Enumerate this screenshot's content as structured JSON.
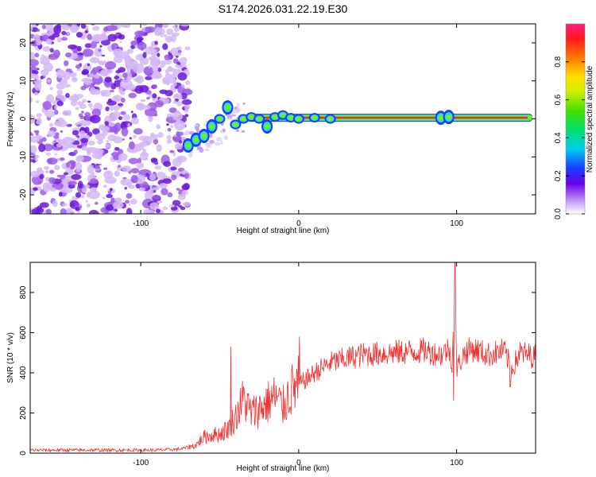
{
  "title": "S174.2026.031.22.19.E30",
  "chart_data": [
    {
      "type": "heatmap",
      "name": "spectrogram",
      "xlabel": "Height of straight line (km)",
      "ylabel": "Frequency (Hz)",
      "xlim": [
        -170,
        150
      ],
      "ylim": [
        -25,
        25
      ],
      "xticks": [
        -100,
        0,
        100
      ],
      "xtick_labels": [
        "-100",
        "0",
        "100"
      ],
      "yticks": [
        -20,
        -10,
        0,
        10,
        20
      ],
      "ytick_labels": [
        "-20",
        "-10",
        "0",
        "10",
        "20"
      ],
      "noise_region_x": [
        -170,
        -70
      ],
      "transition_region_x": [
        -72,
        -33
      ],
      "signal": {
        "frequency_hz": 0.3,
        "start_x": -33,
        "end_x": 148,
        "feature_x": [
          -70,
          -65,
          -60,
          -55,
          -50,
          -45,
          -40,
          -35,
          -30,
          -25,
          -20,
          -15,
          -10,
          -5,
          0,
          10,
          20,
          90,
          95
        ],
        "feature_freq": [
          -7,
          -5.5,
          -4.5,
          -2,
          0,
          3,
          -1.5,
          0,
          0.5,
          0,
          -2,
          0.5,
          1,
          0.3,
          0,
          0.3,
          0,
          0.3,
          0.5
        ]
      },
      "colorbar": {
        "label": "Normalized spectral amplitude",
        "range": [
          0,
          1
        ],
        "ticks": [
          0.0,
          0.2,
          0.4,
          0.6,
          0.8
        ],
        "tick_labels": [
          "0.0",
          "0.2",
          "0.4",
          "0.6",
          "0.8"
        ]
      }
    },
    {
      "type": "line",
      "name": "snr",
      "xlabel": "Height of straight line (km)",
      "ylabel": "SNR (10 * v/v)",
      "xlim": [
        -170,
        150
      ],
      "ylim": [
        0,
        950
      ],
      "xticks": [
        -100,
        0,
        100
      ],
      "xtick_labels": [
        "-100",
        "0",
        "100"
      ],
      "yticks": [
        0,
        200,
        400,
        600,
        800
      ],
      "ytick_labels": [
        "0",
        "200",
        "400",
        "600",
        "800"
      ],
      "series": [
        {
          "name": "SNR",
          "color": "#f03030",
          "x": [
            -170,
            -150,
            -130,
            -110,
            -90,
            -75,
            -65,
            -60,
            -55,
            -50,
            -45,
            -40,
            -35,
            -30,
            -25,
            -20,
            -15,
            -10,
            -5,
            0,
            10,
            20,
            30,
            40,
            60,
            80,
            90,
            95,
            97,
            99,
            100,
            105,
            110,
            120,
            130,
            135,
            140,
            150
          ],
          "y": [
            15,
            15,
            15,
            15,
            15,
            20,
            40,
            80,
            90,
            95,
            120,
            180,
            270,
            200,
            220,
            250,
            280,
            230,
            310,
            340,
            400,
            450,
            470,
            490,
            500,
            510,
            490,
            520,
            450,
            780,
            420,
            500,
            520,
            490,
            510,
            420,
            500,
            480
          ],
          "spikes": [
            {
              "x": -43,
              "y": 530
            },
            {
              "x": 0.5,
              "y": 580
            },
            {
              "x": 99,
              "y": 950
            },
            {
              "x": 98,
              "y": 260
            },
            {
              "x": 134,
              "y": 330
            }
          ]
        }
      ]
    }
  ],
  "colors": {
    "axis": "#000000",
    "noise_purple": "#7b1fe0",
    "signal_core": "#e23030",
    "signal_mid": "#7ff000",
    "signal_outer": "#30e0c0",
    "snr_line": "#f03030"
  }
}
